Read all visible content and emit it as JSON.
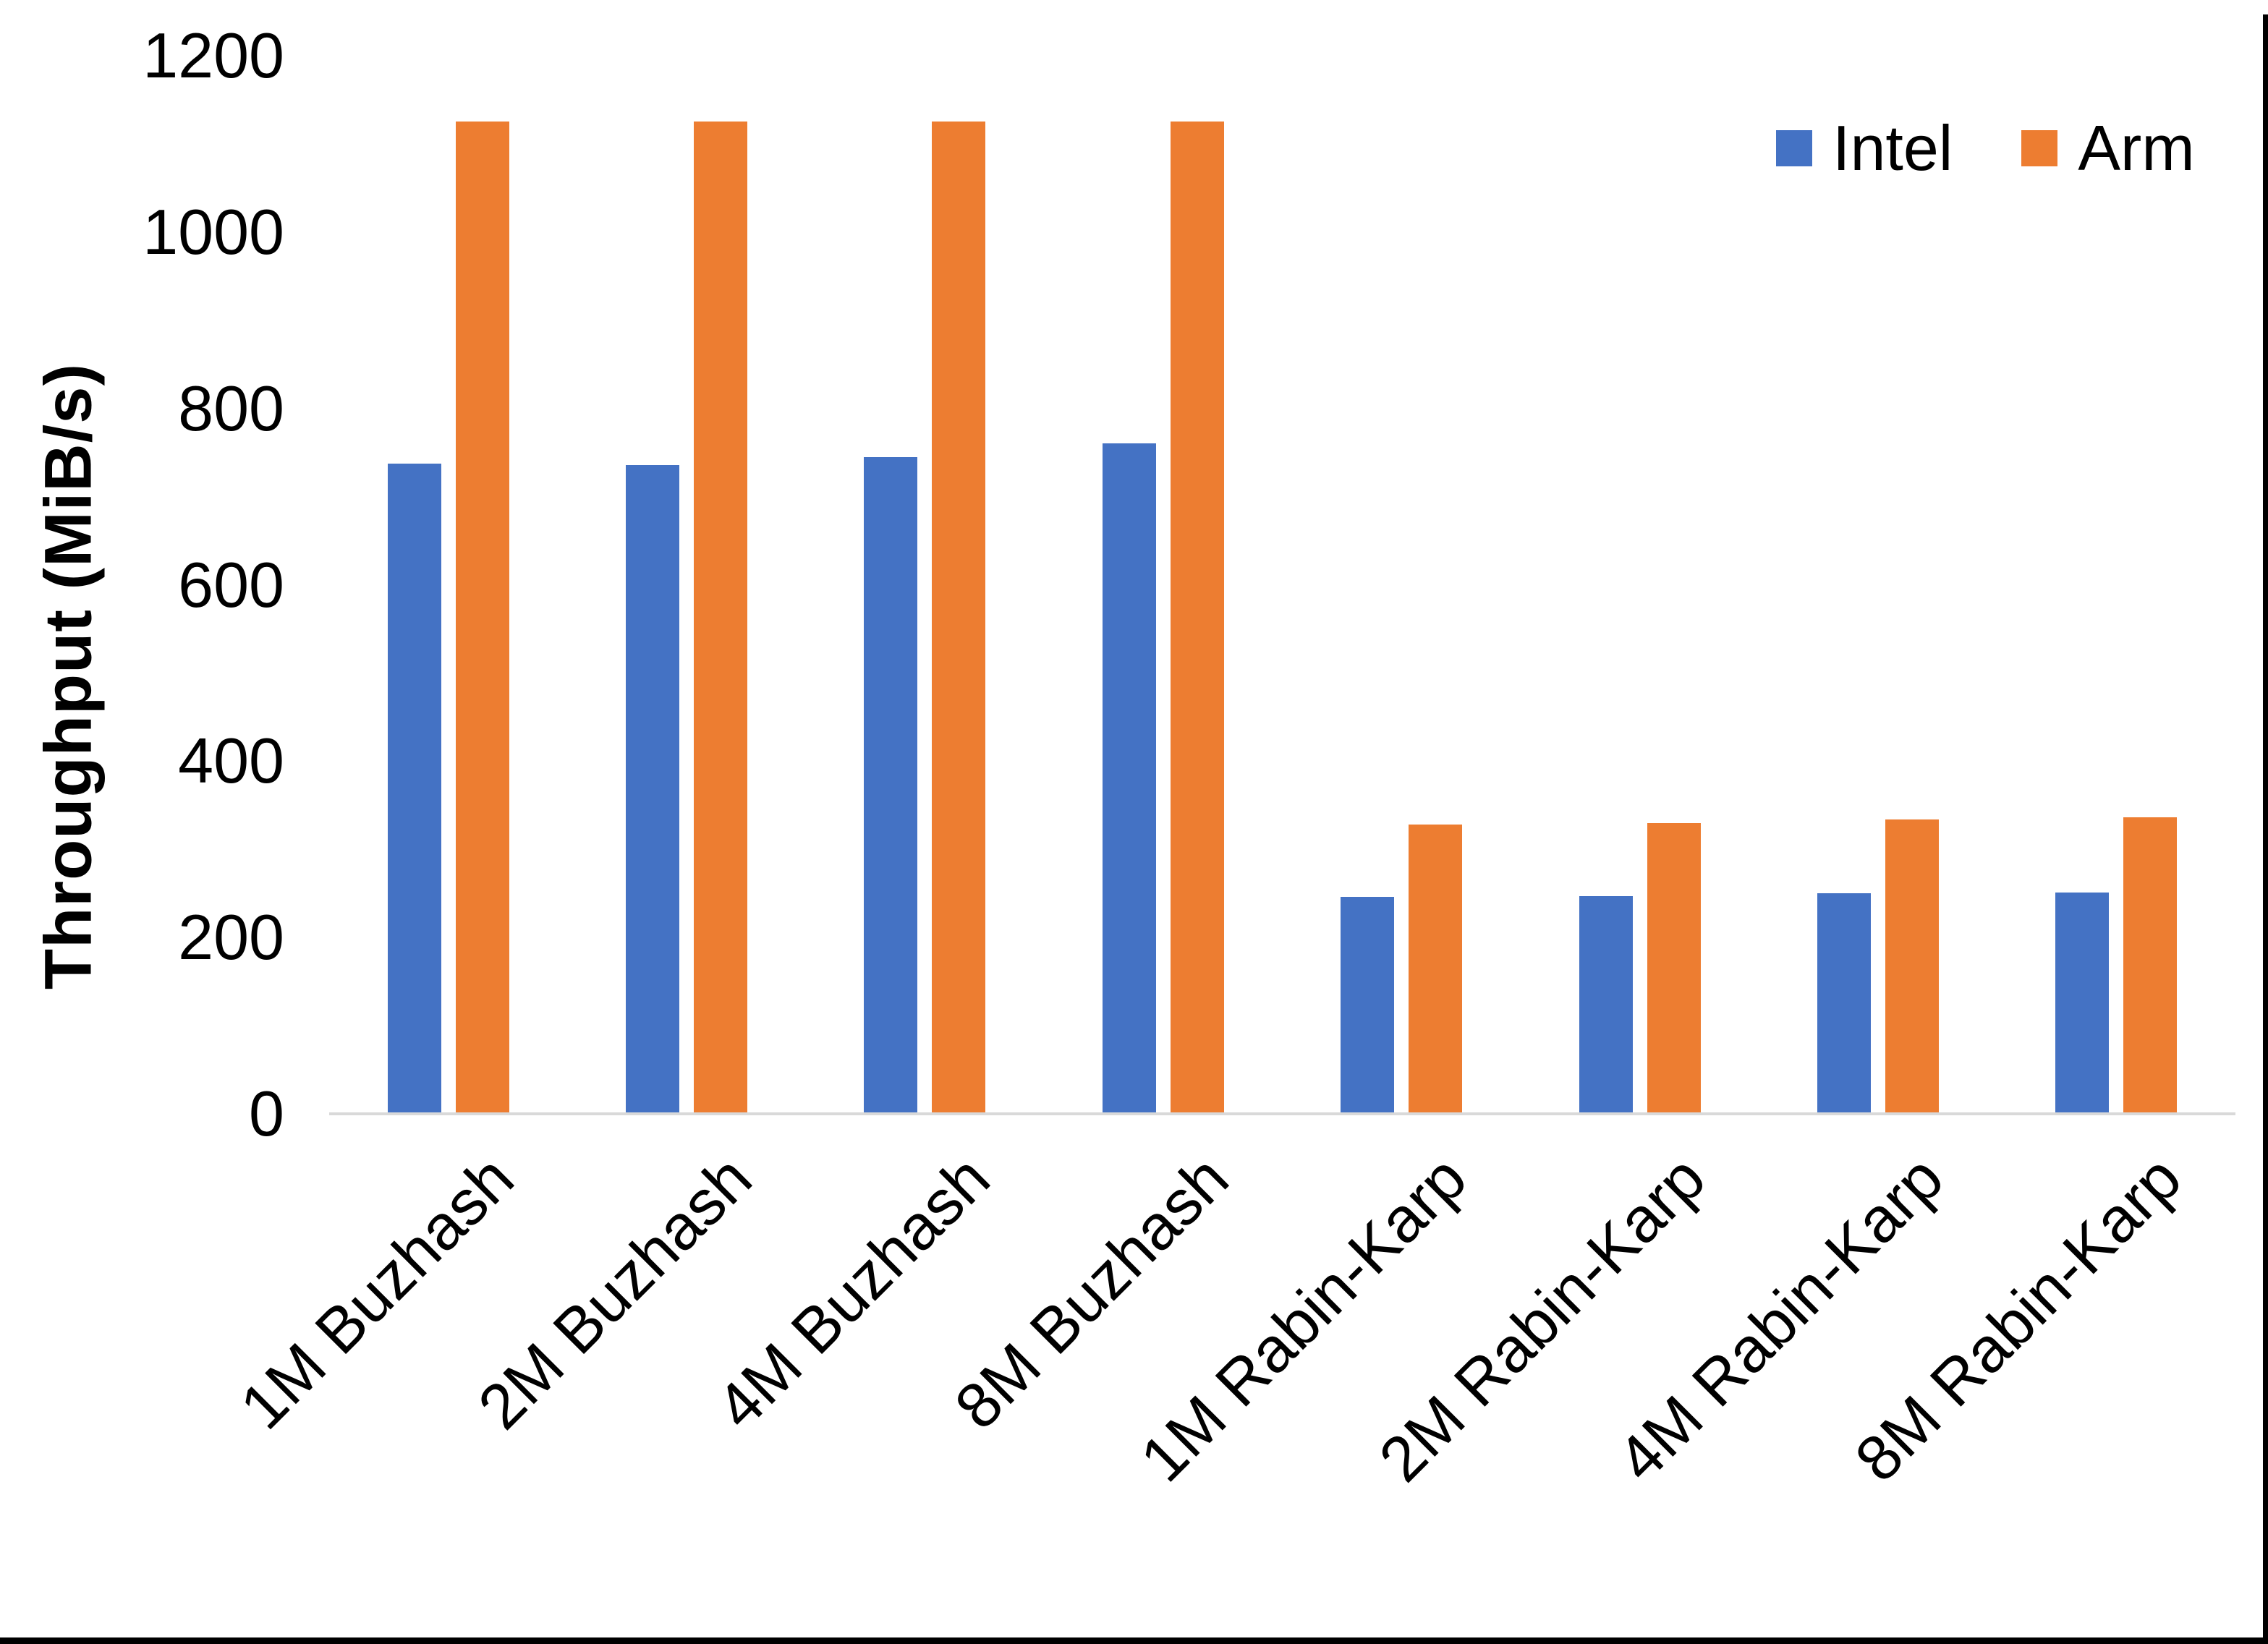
{
  "chart_data": {
    "type": "bar",
    "title": "",
    "ylabel": "Throughput (MiB/s)",
    "xlabel": "",
    "ylim": [
      0,
      1200
    ],
    "yticks": [
      0,
      200,
      400,
      600,
      800,
      1000,
      1200
    ],
    "grid": false,
    "legend_position": "top-right",
    "categories": [
      "1M Buzhash",
      "2M Buzhash",
      "4M Buzhash",
      "8M Buzhash",
      "1M Rabin-Karp",
      "2M Rabin-Karp",
      "4M Rabin-Karp",
      "8M Rabin-Karp"
    ],
    "series": [
      {
        "name": "Intel",
        "color": "#4472C4",
        "values": [
          737,
          736,
          745,
          760,
          246,
          247,
          250,
          251
        ]
      },
      {
        "name": "Arm",
        "color": "#ED7D31",
        "values": [
          1125,
          1125,
          1125,
          1125,
          328,
          330,
          334,
          336
        ]
      }
    ]
  },
  "colors": {
    "background": "#FFFFFF",
    "axis_line": "#D9D9D9",
    "text": "#000000",
    "frame": "#000000"
  }
}
